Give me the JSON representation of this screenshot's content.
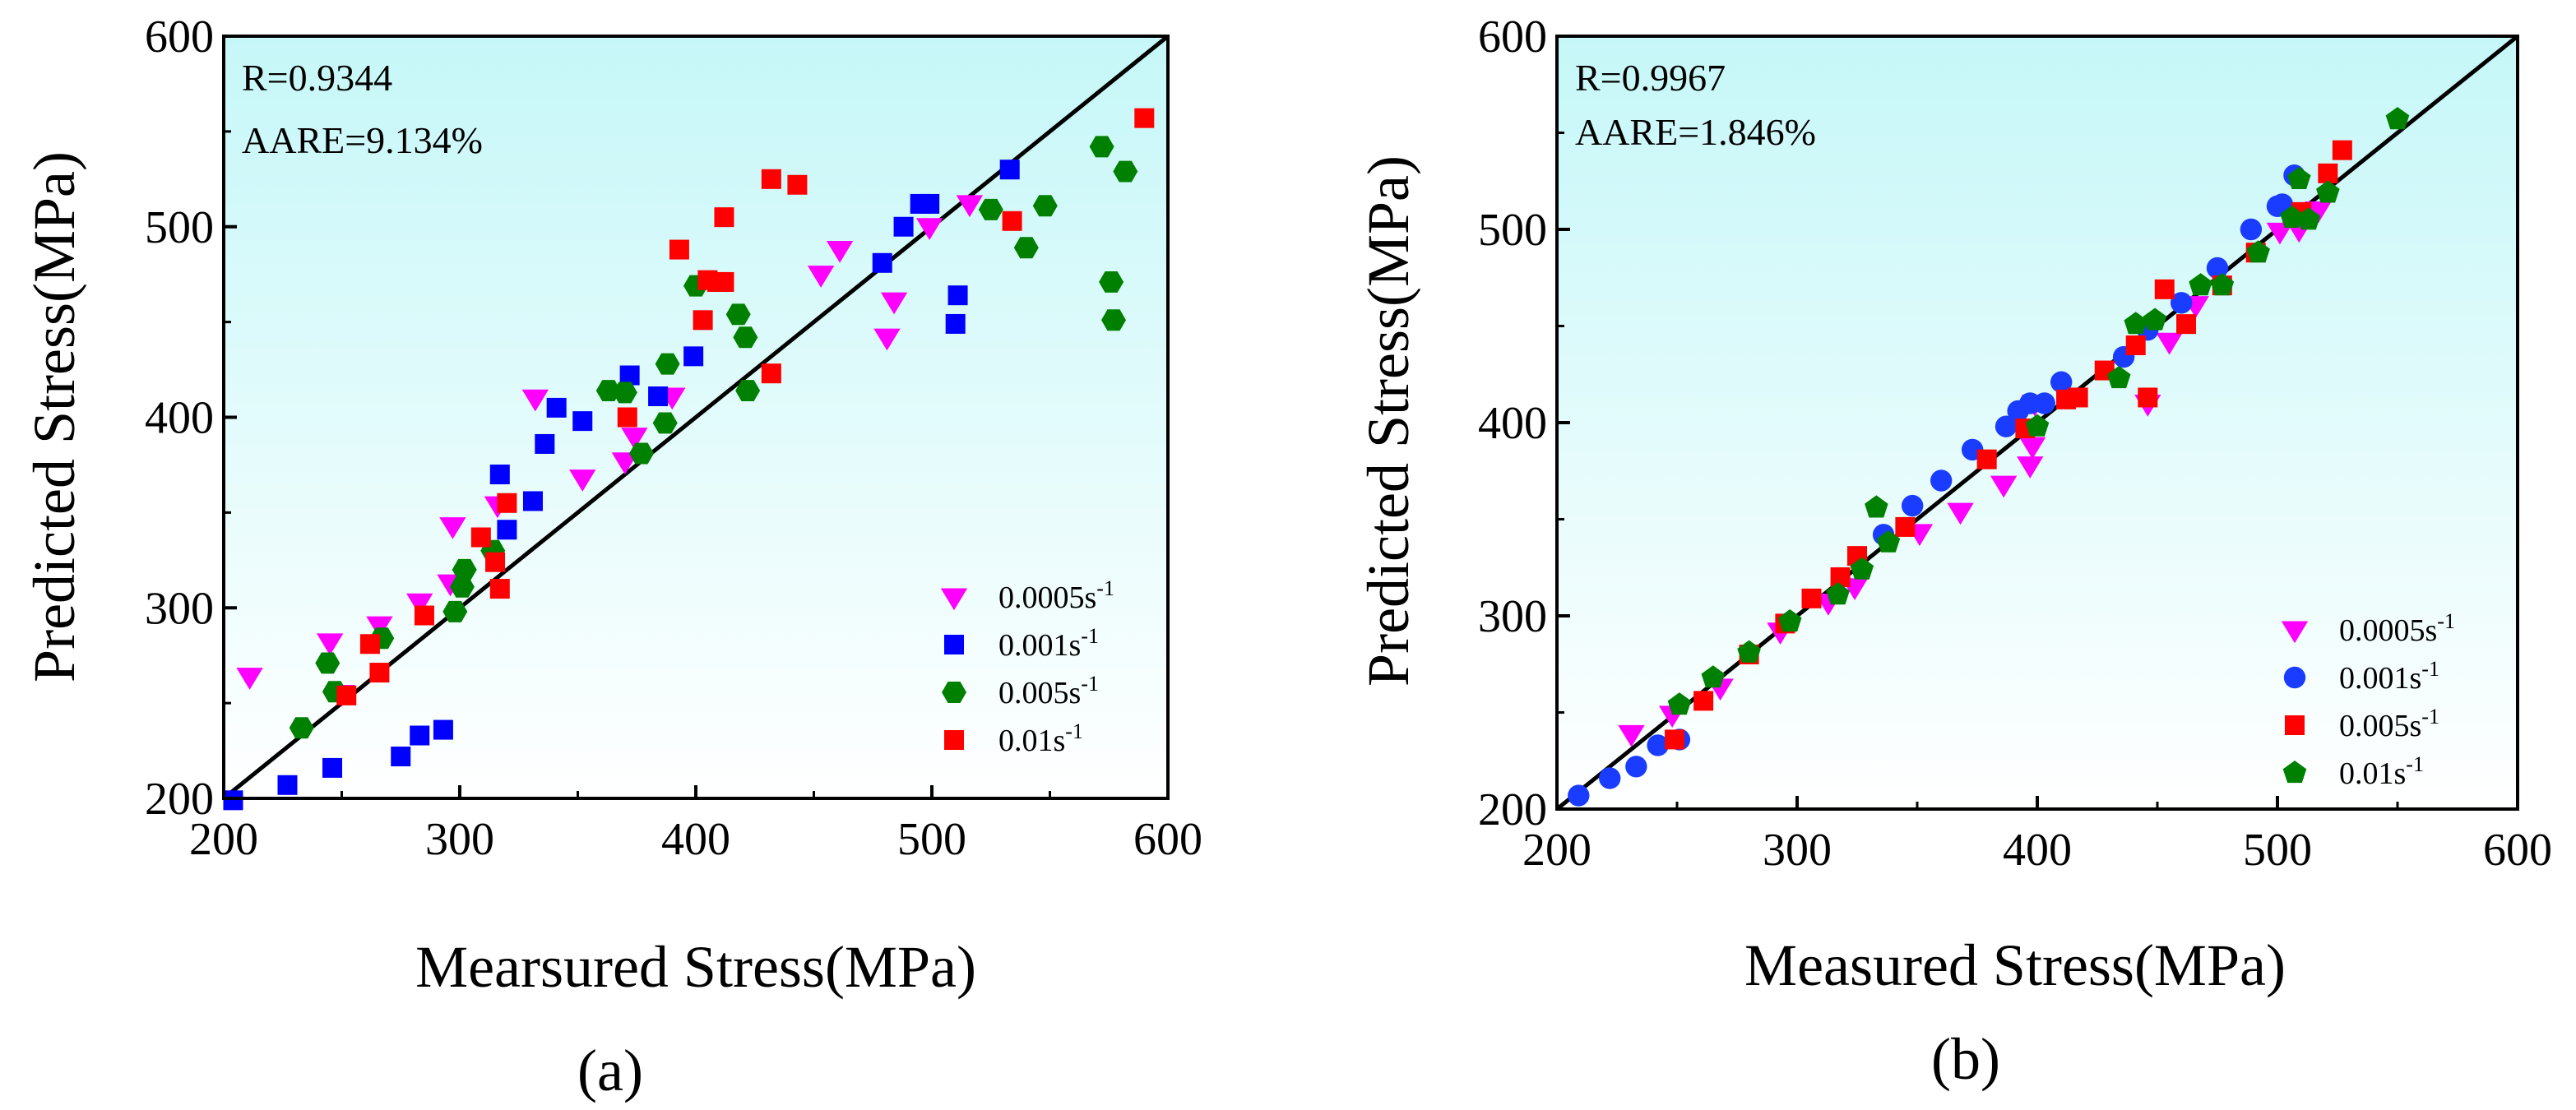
{
  "chart_data": [
    {
      "type": "scatter",
      "panel_label": "(a)",
      "xlabel": "Mearsured Stress(MPa)",
      "ylabel": "Predicted Stress(MPa)",
      "xlim": [
        200,
        600
      ],
      "ylim": [
        200,
        600
      ],
      "xticks": [
        "200",
        "300",
        "400",
        "500",
        "600"
      ],
      "yticks": [
        "200",
        "300",
        "400",
        "500",
        "600"
      ],
      "stats": {
        "r": "R=0.9344",
        "aare": "AARE=9.134%"
      },
      "reference_line": [
        [
          200,
          200
        ],
        [
          600,
          600
        ]
      ],
      "legend_position": "bottom-right",
      "series": [
        {
          "name": "0.0005s",
          "name_sup": "-1",
          "marker": "triangle-down",
          "color": "#ff00ff",
          "points": [
            [
              211,
              264
            ],
            [
              245,
              282
            ],
            [
              250,
              255
            ],
            [
              266,
              291
            ],
            [
              283,
              303
            ],
            [
              296,
              313
            ],
            [
              297,
              343
            ],
            [
              316,
              354
            ],
            [
              332,
              410
            ],
            [
              352,
              368
            ],
            [
              370,
              377
            ],
            [
              374,
              390
            ],
            [
              390,
              411
            ],
            [
              453,
              475
            ],
            [
              461,
              488
            ],
            [
              481,
              442
            ],
            [
              484,
              461
            ],
            [
              499,
              500
            ],
            [
              516,
              512
            ]
          ]
        },
        {
          "name": "0.001s",
          "name_sup": "-1",
          "marker": "square",
          "color": "#0000ff",
          "points": [
            [
              204,
              199
            ],
            [
              227,
              207
            ],
            [
              246,
              216
            ],
            [
              275,
              222
            ],
            [
              283,
              233
            ],
            [
              293,
              236
            ],
            [
              317,
              370
            ],
            [
              320,
              341
            ],
            [
              331,
              356
            ],
            [
              336,
              386
            ],
            [
              341,
              405
            ],
            [
              352,
              398
            ],
            [
              372,
              422
            ],
            [
              384,
              411
            ],
            [
              399,
              432
            ],
            [
              479,
              481
            ],
            [
              488,
              500
            ],
            [
              495,
              512
            ],
            [
              499,
              512
            ],
            [
              510,
              449
            ],
            [
              511,
              464
            ],
            [
              533,
              530
            ]
          ]
        },
        {
          "name": "0.005s",
          "name_sup": "-1",
          "marker": "hexagon",
          "color": "#008000",
          "points": [
            [
              233,
              237
            ],
            [
              244,
              271
            ],
            [
              247,
              256
            ],
            [
              267,
              284
            ],
            [
              298,
              298
            ],
            [
              301,
              311
            ],
            [
              302,
              320
            ],
            [
              314,
              330
            ],
            [
              363,
              414
            ],
            [
              370,
              413
            ],
            [
              377,
              381
            ],
            [
              387,
              397
            ],
            [
              388,
              428
            ],
            [
              400,
              469
            ],
            [
              418,
              454
            ],
            [
              421,
              442
            ],
            [
              422,
              414
            ],
            [
              525,
              509
            ],
            [
              540,
              489
            ],
            [
              548,
              511
            ],
            [
              572,
              542
            ],
            [
              576,
              471
            ],
            [
              577,
              451
            ],
            [
              582,
              529
            ]
          ]
        },
        {
          "name": "0.01s",
          "name_sup": "-1",
          "marker": "square",
          "color": "#ff0000",
          "points": [
            [
              252,
              254
            ],
            [
              262,
              281
            ],
            [
              266,
              266
            ],
            [
              285,
              296
            ],
            [
              309,
              337
            ],
            [
              315,
              324
            ],
            [
              317,
              310
            ],
            [
              320,
              355
            ],
            [
              371,
              400
            ],
            [
              393,
              488
            ],
            [
              403,
              451
            ],
            [
              405,
              472
            ],
            [
              409,
              471
            ],
            [
              412,
              471
            ],
            [
              412,
              505
            ],
            [
              432,
              423
            ],
            [
              432,
              525
            ],
            [
              443,
              522
            ],
            [
              534,
              503
            ],
            [
              590,
              557
            ]
          ]
        }
      ]
    },
    {
      "type": "scatter",
      "panel_label": "(b)",
      "xlabel": "Measured Stress(MPa)",
      "ylabel": "Predicted Stress(MPa)",
      "xlim": [
        200,
        600
      ],
      "ylim": [
        200,
        600
      ],
      "xticks": [
        "200",
        "300",
        "400",
        "500",
        "600"
      ],
      "yticks": [
        "200",
        "300",
        "400",
        "500",
        "600"
      ],
      "stats": {
        "r": "R=0.9967",
        "aare": "AARE=1.846%"
      },
      "reference_line": [
        [
          200,
          200
        ],
        [
          600,
          600
        ]
      ],
      "legend_position": "bottom-right",
      "series": [
        {
          "name": "0.0005s",
          "name_sup": "-1",
          "marker": "triangle-down",
          "color": "#ff00ff",
          "points": [
            [
              231,
              239
            ],
            [
              248,
              249
            ],
            [
              268,
              263
            ],
            [
              293,
              292
            ],
            [
              313,
              307
            ],
            [
              324,
              315
            ],
            [
              351,
              343
            ],
            [
              368,
              354
            ],
            [
              386,
              368
            ],
            [
              397,
              378
            ],
            [
              398,
              388
            ],
            [
              399,
              410
            ],
            [
              446,
              410
            ],
            [
              455,
              442
            ],
            [
              466,
              461
            ],
            [
              501,
              499
            ],
            [
              509,
              500
            ],
            [
              517,
              510
            ]
          ]
        },
        {
          "name": "0.001s",
          "name_sup": "-1",
          "marker": "circle",
          "color": "#1a3cff",
          "points": [
            [
              209,
              207
            ],
            [
              222,
              216
            ],
            [
              233,
              222
            ],
            [
              242,
              233
            ],
            [
              251,
              236
            ],
            [
              336,
              342
            ],
            [
              348,
              357
            ],
            [
              360,
              370
            ],
            [
              373,
              386
            ],
            [
              387,
              398
            ],
            [
              392,
              406
            ],
            [
              397,
              410
            ],
            [
              403,
              410
            ],
            [
              410,
              421
            ],
            [
              436,
              434
            ],
            [
              446,
              448
            ],
            [
              460,
              462
            ],
            [
              475,
              480
            ],
            [
              489,
              500
            ],
            [
              500,
              512
            ],
            [
              502,
              513
            ],
            [
              507,
              528
            ]
          ]
        },
        {
          "name": "0.005s",
          "name_sup": "-1",
          "marker": "square",
          "color": "#ff0000",
          "points": [
            [
              249,
              236
            ],
            [
              261,
              256
            ],
            [
              280,
              280
            ],
            [
              295,
              296
            ],
            [
              306,
              309
            ],
            [
              318,
              320
            ],
            [
              325,
              331
            ],
            [
              345,
              346
            ],
            [
              379,
              381
            ],
            [
              395,
              397
            ],
            [
              412,
              412
            ],
            [
              417,
              413
            ],
            [
              428,
              427
            ],
            [
              441,
              440
            ],
            [
              446,
              413
            ],
            [
              453,
              469
            ],
            [
              462,
              451
            ],
            [
              477,
              471
            ],
            [
              491,
              488
            ],
            [
              510,
              509
            ],
            [
              521,
              529
            ],
            [
              527,
              541
            ]
          ]
        },
        {
          "name": "0.01s",
          "name_sup": "-1",
          "marker": "pentagon",
          "color": "#008000",
          "points": [
            [
              251,
              254
            ],
            [
              265,
              268
            ],
            [
              280,
              281
            ],
            [
              297,
              297
            ],
            [
              317,
              311
            ],
            [
              327,
              324
            ],
            [
              333,
              356
            ],
            [
              338,
              338
            ],
            [
              400,
              398
            ],
            [
              434,
              423
            ],
            [
              441,
              451
            ],
            [
              449,
              453
            ],
            [
              468,
              471
            ],
            [
              477,
              471
            ],
            [
              492,
              488
            ],
            [
              506,
              506
            ],
            [
              509,
              526
            ],
            [
              513,
              505
            ],
            [
              521,
              519
            ],
            [
              550,
              557
            ]
          ]
        }
      ]
    }
  ]
}
